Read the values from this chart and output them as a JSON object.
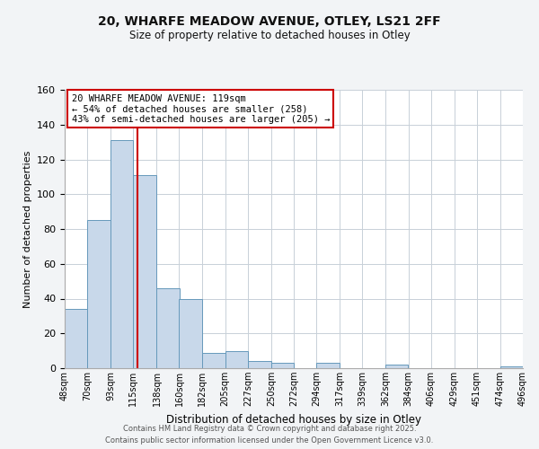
{
  "title1": "20, WHARFE MEADOW AVENUE, OTLEY, LS21 2FF",
  "title2": "Size of property relative to detached houses in Otley",
  "xlabel": "Distribution of detached houses by size in Otley",
  "ylabel": "Number of detached properties",
  "bar_color": "#c8d8ea",
  "bar_edge_color": "#6699bb",
  "bins": [
    48,
    70,
    93,
    115,
    138,
    160,
    182,
    205,
    227,
    250,
    272,
    294,
    317,
    339,
    362,
    384,
    406,
    429,
    451,
    474,
    496
  ],
  "counts": [
    34,
    85,
    131,
    111,
    46,
    40,
    9,
    10,
    4,
    3,
    0,
    3,
    0,
    0,
    2,
    0,
    0,
    0,
    0,
    1
  ],
  "tick_labels": [
    "48sqm",
    "70sqm",
    "93sqm",
    "115sqm",
    "138sqm",
    "160sqm",
    "182sqm",
    "205sqm",
    "227sqm",
    "250sqm",
    "272sqm",
    "294sqm",
    "317sqm",
    "339sqm",
    "362sqm",
    "384sqm",
    "406sqm",
    "429sqm",
    "451sqm",
    "474sqm",
    "496sqm"
  ],
  "property_size": 119,
  "vline_color": "#cc0000",
  "annotation_line1": "20 WHARFE MEADOW AVENUE: 119sqm",
  "annotation_line2": "← 54% of detached houses are smaller (258)",
  "annotation_line3": "43% of semi-detached houses are larger (205) →",
  "ylim": [
    0,
    160
  ],
  "yticks": [
    0,
    20,
    40,
    60,
    80,
    100,
    120,
    140,
    160
  ],
  "footer1": "Contains HM Land Registry data © Crown copyright and database right 2025.",
  "footer2": "Contains public sector information licensed under the Open Government Licence v3.0.",
  "bg_color": "#f2f4f6",
  "plot_bg_color": "#ffffff",
  "grid_color": "#c8d0d8"
}
